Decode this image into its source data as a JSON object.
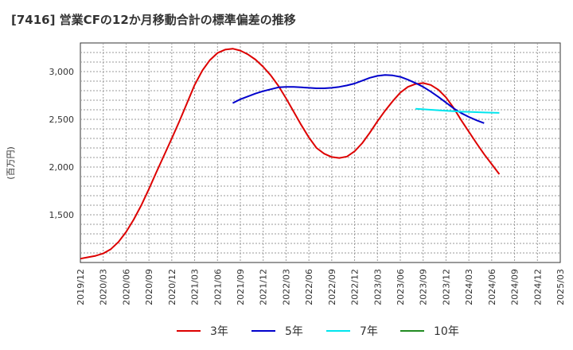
{
  "title": "[7416]  営業CFの12か月移動合計の標準偏差の推移",
  "chart_data": {
    "type": "line",
    "title": "[7416]  営業CFの12か月移動合計の標準偏差の推移",
    "ylabel": "(百万円)",
    "xlabel": "",
    "x_ticks": [
      "2019/12",
      "2020/03",
      "2020/06",
      "2020/09",
      "2020/12",
      "2021/03",
      "2021/06",
      "2021/09",
      "2021/12",
      "2022/03",
      "2022/06",
      "2022/09",
      "2022/12",
      "2023/03",
      "2023/06",
      "2023/09",
      "2023/12",
      "2024/03",
      "2024/06",
      "2024/09",
      "2024/12",
      "2025/03"
    ],
    "y_ticks": [
      1500,
      2000,
      2500,
      3000
    ],
    "y_tick_labels": [
      "1,500",
      "2,000",
      "2,500",
      "3,000"
    ],
    "ylim": [
      1000,
      3300
    ],
    "grid": true,
    "legend_position": "bottom",
    "series": [
      {
        "name": "3年",
        "color": "#dd0000",
        "points": [
          [
            "2019/12",
            1040
          ],
          [
            "2020/01",
            1055
          ],
          [
            "2020/02",
            1070
          ],
          [
            "2020/03",
            1095
          ],
          [
            "2020/04",
            1140
          ],
          [
            "2020/05",
            1215
          ],
          [
            "2020/06",
            1320
          ],
          [
            "2020/07",
            1450
          ],
          [
            "2020/08",
            1600
          ],
          [
            "2020/09",
            1770
          ],
          [
            "2020/10",
            1950
          ],
          [
            "2020/11",
            2125
          ],
          [
            "2020/12",
            2300
          ],
          [
            "2020/13",
            2480
          ],
          [
            "2021/02",
            2670
          ],
          [
            "2021/03",
            2860
          ],
          [
            "2021/04",
            3010
          ],
          [
            "2021/05",
            3120
          ],
          [
            "2021/06",
            3195
          ],
          [
            "2021/07",
            3230
          ],
          [
            "2021/08",
            3240
          ],
          [
            "2021/09",
            3220
          ],
          [
            "2021/10",
            3180
          ],
          [
            "2021/11",
            3125
          ],
          [
            "2021/12",
            3050
          ],
          [
            "2022/01",
            2960
          ],
          [
            "2022/02",
            2850
          ],
          [
            "2022/03",
            2720
          ],
          [
            "2022/04",
            2580
          ],
          [
            "2022/05",
            2440
          ],
          [
            "2022/06",
            2310
          ],
          [
            "2022/07",
            2200
          ],
          [
            "2022/08",
            2140
          ],
          [
            "2022/09",
            2105
          ],
          [
            "2022/10",
            2095
          ],
          [
            "2022/11",
            2110
          ],
          [
            "2022/12",
            2165
          ],
          [
            "2023/01",
            2250
          ],
          [
            "2023/02",
            2360
          ],
          [
            "2023/03",
            2480
          ],
          [
            "2023/04",
            2590
          ],
          [
            "2023/05",
            2690
          ],
          [
            "2023/06",
            2780
          ],
          [
            "2023/07",
            2840
          ],
          [
            "2023/08",
            2870
          ],
          [
            "2023/09",
            2880
          ],
          [
            "2023/10",
            2860
          ],
          [
            "2023/11",
            2810
          ],
          [
            "2023/12",
            2730
          ],
          [
            "2024/01",
            2620
          ],
          [
            "2024/02",
            2490
          ],
          [
            "2024/03",
            2370
          ],
          [
            "2024/04",
            2250
          ],
          [
            "2024/05",
            2135
          ],
          [
            "2024/06",
            2030
          ],
          [
            "2024/07",
            1925
          ]
        ]
      },
      {
        "name": "5年",
        "color": "#0000cc",
        "points": [
          [
            "2021/08",
            2670
          ],
          [
            "2021/09",
            2710
          ],
          [
            "2021/10",
            2740
          ],
          [
            "2021/11",
            2770
          ],
          [
            "2021/12",
            2795
          ],
          [
            "2022/01",
            2815
          ],
          [
            "2022/02",
            2835
          ],
          [
            "2022/03",
            2840
          ],
          [
            "2022/04",
            2840
          ],
          [
            "2022/05",
            2835
          ],
          [
            "2022/06",
            2830
          ],
          [
            "2022/07",
            2825
          ],
          [
            "2022/08",
            2825
          ],
          [
            "2022/09",
            2830
          ],
          [
            "2022/10",
            2840
          ],
          [
            "2022/11",
            2855
          ],
          [
            "2022/12",
            2875
          ],
          [
            "2023/01",
            2905
          ],
          [
            "2023/02",
            2935
          ],
          [
            "2023/03",
            2955
          ],
          [
            "2023/04",
            2965
          ],
          [
            "2023/05",
            2960
          ],
          [
            "2023/06",
            2945
          ],
          [
            "2023/07",
            2915
          ],
          [
            "2023/08",
            2880
          ],
          [
            "2023/09",
            2840
          ],
          [
            "2023/10",
            2790
          ],
          [
            "2023/11",
            2735
          ],
          [
            "2023/12",
            2675
          ],
          [
            "2024/01",
            2615
          ],
          [
            "2024/02",
            2565
          ],
          [
            "2024/03",
            2525
          ],
          [
            "2024/04",
            2490
          ],
          [
            "2024/05",
            2460
          ]
        ]
      },
      {
        "name": "7年",
        "color": "#00e5ee",
        "points": [
          [
            "2023/08",
            2610
          ],
          [
            "2023/09",
            2605
          ],
          [
            "2023/10",
            2600
          ],
          [
            "2023/11",
            2595
          ],
          [
            "2023/12",
            2590
          ],
          [
            "2024/01",
            2585
          ],
          [
            "2024/02",
            2580
          ],
          [
            "2024/03",
            2578
          ],
          [
            "2024/04",
            2575
          ],
          [
            "2024/05",
            2572
          ],
          [
            "2024/06",
            2570
          ],
          [
            "2024/07",
            2568
          ]
        ]
      },
      {
        "name": "10年",
        "color": "#228b22",
        "points": []
      }
    ]
  }
}
